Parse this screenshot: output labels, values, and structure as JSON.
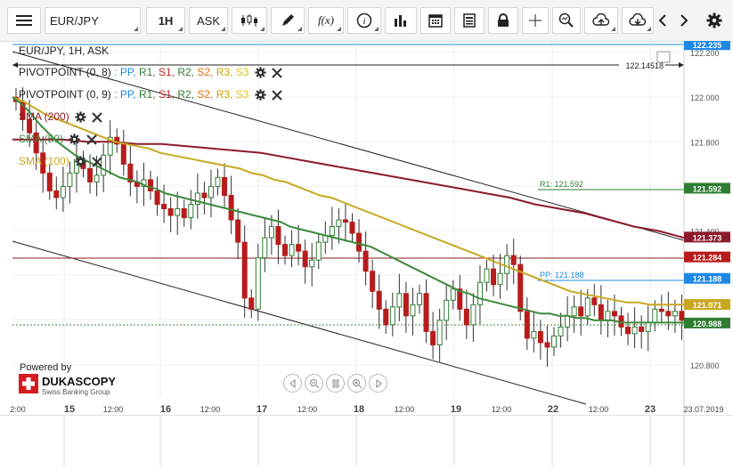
{
  "toolbar": {
    "instrument": "EUR/JPY",
    "timeframe": "1H",
    "side": "ASK",
    "formula_label": "f(x)",
    "icons": [
      "menu-icon",
      "candles-icon",
      "pencil-icon",
      "function-icon",
      "info-icon",
      "bar-chart-icon",
      "calendar-icon",
      "report-icon",
      "lock-icon",
      "crosshair-icon",
      "zoom-icon",
      "upload-icon",
      "download-icon",
      "chevron-left-icon",
      "chevron-right-icon",
      "gear-icon"
    ]
  },
  "legend": {
    "title": "EUR/JPY, 1H, ASK",
    "pivot1": {
      "name": "PIVOTPOINT (0, 8)"
    },
    "pivot2": {
      "name": "PIVOTPOINT (0, 9)"
    },
    "pivot_items": [
      {
        "label": "PP",
        "color": "#1e88e5"
      },
      {
        "label": "R1",
        "color": "#2e7d32"
      },
      {
        "label": "S1",
        "color": "#c62828"
      },
      {
        "label": "R2",
        "color": "#2e7d32"
      },
      {
        "label": "S2",
        "color": "#ef6c00"
      },
      {
        "label": "R3",
        "color": "#c8a400"
      },
      {
        "label": "S3",
        "color": "#e6c200"
      }
    ],
    "sma200": {
      "label": "SMA (200)",
      "color": "#8b1a2b"
    },
    "sma50": {
      "label": "SMA (50)",
      "color": "#3d8a3d"
    },
    "sma100": {
      "label": "SMA (100)",
      "color": "#c8a820"
    }
  },
  "chart_data": {
    "type": "candlestick",
    "y_ticks": [
      "122.200",
      "122.000",
      "121.800",
      "121.400",
      "120.800"
    ],
    "x_ticks": [
      "2:00",
      "15",
      "12:00",
      "16",
      "12:00",
      "17",
      "12:00",
      "18",
      "12:00",
      "19",
      "12:00",
      "22",
      "12:00",
      "23",
      "23.07.2019"
    ],
    "price_tags": [
      {
        "value": "122.235",
        "color": "#1e88e5"
      },
      {
        "value": "121.592",
        "color": "#2e7d32"
      },
      {
        "value": "121.373",
        "color": "#8b1a2b"
      },
      {
        "value": "121.284",
        "color": "#b71c1c"
      },
      {
        "value": "121.188",
        "color": "#1e88e5"
      },
      {
        "value": "121.071",
        "color": "#c8a820"
      },
      {
        "value": "120.988",
        "color": "#2e7d32"
      }
    ],
    "line_labels": [
      {
        "text": "R1: 121.592",
        "color": "#2e7d32"
      },
      {
        "text": "PP: 121.188",
        "color": "#1e88e5"
      },
      {
        "text": "122.14518",
        "color": "#222222"
      }
    ],
    "closes": [
      121.98,
      121.9,
      121.84,
      121.75,
      121.66,
      121.58,
      121.55,
      121.6,
      121.66,
      121.72,
      121.68,
      121.62,
      121.65,
      121.74,
      121.82,
      121.79,
      121.7,
      121.62,
      121.6,
      121.63,
      121.58,
      121.52,
      121.5,
      121.47,
      121.5,
      121.46,
      121.52,
      121.57,
      121.55,
      121.6,
      121.64,
      121.56,
      121.45,
      121.35,
      121.1,
      121.05,
      121.28,
      121.37,
      121.42,
      121.34,
      121.29,
      121.34,
      121.31,
      121.24,
      121.27,
      121.35,
      121.38,
      121.42,
      121.45,
      121.44,
      121.39,
      121.31,
      121.22,
      121.13,
      121.05,
      120.98,
      121.06,
      121.12,
      121.02,
      121.07,
      121.12,
      120.95,
      120.89,
      121.0,
      121.09,
      121.14,
      121.05,
      120.98,
      121.07,
      121.17,
      121.23,
      121.16,
      121.21,
      121.29,
      121.25,
      121.04,
      120.92,
      120.95,
      120.9,
      120.88,
      120.93,
      120.97,
      121.02,
      121.06,
      121.02,
      121.1,
      121.07,
      121.0,
      121.04,
      121.02,
      120.97,
      120.94,
      120.97,
      120.95,
      120.99,
      121.05,
      121.04,
      121.02,
      121.04,
      121.0
    ],
    "sma50": [
      122.0,
      121.97,
      121.93,
      121.88,
      121.84,
      121.8,
      121.77,
      121.74,
      121.72,
      121.7,
      121.68,
      121.66,
      121.64,
      121.63,
      121.62,
      121.6,
      121.59,
      121.57,
      121.56,
      121.55,
      121.54,
      121.53,
      121.52,
      121.51,
      121.5,
      121.49,
      121.48,
      121.47,
      121.46,
      121.45,
      121.44,
      121.42,
      121.41,
      121.4,
      121.39,
      121.38,
      121.37,
      121.36,
      121.35,
      121.34,
      121.33,
      121.31,
      121.29,
      121.27,
      121.25,
      121.23,
      121.21,
      121.19,
      121.17,
      121.15,
      121.13,
      121.12,
      121.1,
      121.09,
      121.08,
      121.07,
      121.06,
      121.05,
      121.04,
      121.03,
      121.03,
      121.02,
      121.02,
      121.01,
      121.01,
      121.0,
      121.0,
      121.0,
      120.99,
      120.99,
      120.99,
      120.99,
      120.99,
      120.99,
      120.99,
      120.99
    ],
    "sma100": [
      122.0,
      121.98,
      121.95,
      121.92,
      121.9,
      121.88,
      121.86,
      121.84,
      121.82,
      121.8,
      121.79,
      121.78,
      121.77,
      121.75,
      121.74,
      121.73,
      121.72,
      121.71,
      121.7,
      121.69,
      121.68,
      121.66,
      121.65,
      121.63,
      121.62,
      121.6,
      121.58,
      121.56,
      121.55,
      121.53,
      121.51,
      121.49,
      121.47,
      121.45,
      121.43,
      121.41,
      121.39,
      121.37,
      121.35,
      121.33,
      121.31,
      121.29,
      121.27,
      121.25,
      121.23,
      121.21,
      121.19,
      121.17,
      121.15,
      121.13,
      121.12,
      121.11,
      121.1,
      121.09,
      121.08,
      121.08,
      121.07,
      121.07,
      121.07,
      121.07
    ],
    "sma200": [
      121.81,
      121.81,
      121.81,
      121.8,
      121.8,
      121.79,
      121.79,
      121.78,
      121.77,
      121.76,
      121.75,
      121.73,
      121.71,
      121.69,
      121.67,
      121.65,
      121.63,
      121.61,
      121.59,
      121.57,
      121.55,
      121.52,
      121.5,
      121.48,
      121.45,
      121.42,
      121.4,
      121.37
    ]
  },
  "powered": {
    "label": "Powered by",
    "brand": "DUKASCOPY",
    "sub": "Swiss Banking Group"
  },
  "navigation": [
    "scroll-left-icon",
    "zoom-out-icon",
    "pause-icon",
    "zoom-in-icon",
    "scroll-right-icon"
  ]
}
